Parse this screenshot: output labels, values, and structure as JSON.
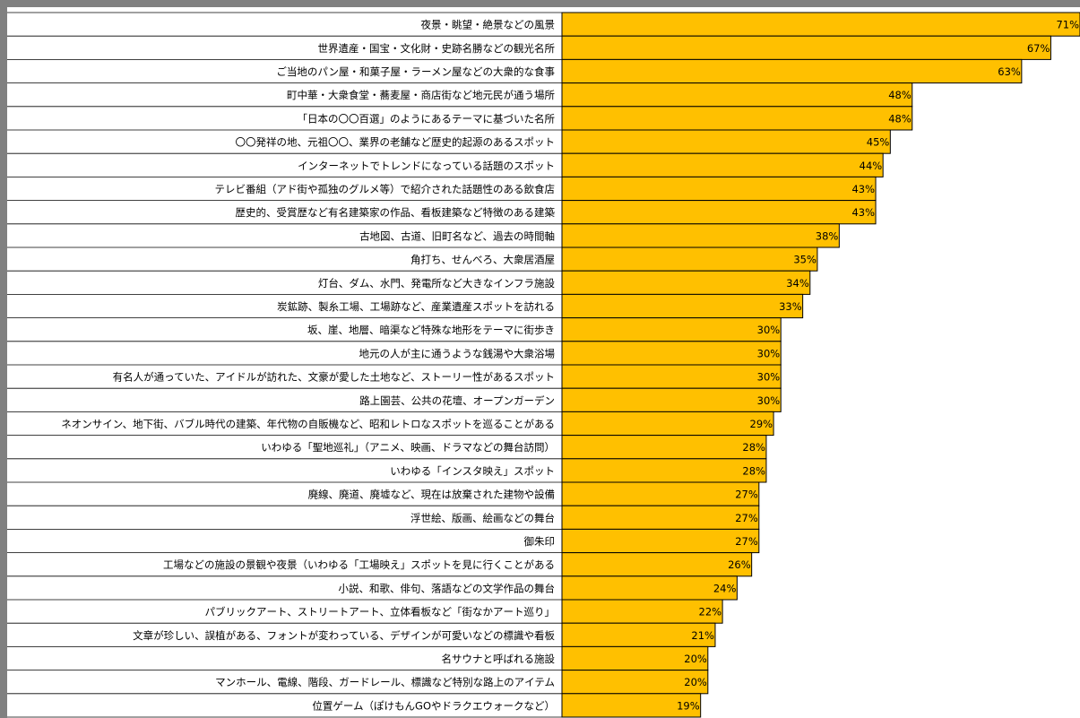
{
  "chart_data": {
    "type": "bar",
    "orientation": "horizontal",
    "color": "#ffc000",
    "categories": [
      "夜景・眺望・絶景などの風景",
      "世界遺産・国宝・文化財・史跡名勝などの観光名所",
      "ご当地のパン屋・和菓子屋・ラーメン屋などの大衆的な食事",
      "町中華・大衆食堂・蕎麦屋・商店街など地元民が通う場所",
      "「日本の〇〇百選」のようにあるテーマに基づいた名所",
      "〇〇発祥の地、元祖〇〇、業界の老舗など歴史的起源のあるスポット",
      "インターネットでトレンドになっている話題のスポット",
      "テレビ番組（アド街や孤独のグルメ等）で紹介された話題性のある飲食店",
      "歴史的、受賞歴など有名建築家の作品、看板建築など特徴のある建築",
      "古地図、古道、旧町名など、過去の時間軸",
      "角打ち、せんべろ、大衆居酒屋",
      "灯台、ダム、水門、発電所など大きなインフラ施設",
      "炭鉱跡、製糸工場、工場跡など、産業遺産スポットを訪れる",
      "坂、崖、地層、暗渠など特殊な地形をテーマに街歩き",
      "地元の人が主に通うような銭湯や大衆浴場",
      "有名人が通っていた、アイドルが訪れた、文豪が愛した土地など、ストーリー性があるスポット",
      "路上園芸、公共の花壇、オープンガーデン",
      "ネオンサイン、地下街、バブル時代の建築、年代物の自販機など、昭和レトロなスポットを巡ることがある",
      "いわゆる「聖地巡礼」（アニメ、映画、ドラマなどの舞台訪問）",
      "いわゆる「インスタ映え」スポット",
      "廃線、廃道、廃墟など、現在は放棄された建物や設備",
      "浮世絵、版画、絵画などの舞台",
      "御朱印",
      "工場などの施設の景観や夜景（いわゆる「工場映え」スポットを見に行くことがある",
      "小説、和歌、俳句、落語などの文学作品の舞台",
      "パブリックアート、ストリートアート、立体看板など「街なかアート巡り」",
      "文章が珍しい、誤植がある、フォントが変わっている、デザインが可愛いなどの標識や看板",
      "名サウナと呼ばれる施設",
      "マンホール、電線、階段、ガードレール、標識など特別な路上のアイテム",
      "位置ゲーム（ぽけもんGOやドラクエウォークなど）"
    ],
    "values": [
      71,
      67,
      63,
      48,
      48,
      45,
      44,
      43,
      43,
      38,
      35,
      34,
      33,
      30,
      30,
      30,
      30,
      29,
      28,
      28,
      27,
      27,
      27,
      26,
      24,
      22,
      21,
      20,
      20,
      19
    ],
    "value_labels": [
      "71%",
      "67%",
      "63%",
      "48%",
      "48%",
      "45%",
      "44%",
      "43%",
      "43%",
      "38%",
      "35%",
      "34%",
      "33%",
      "30%",
      "30%",
      "30%",
      "30%",
      "29%",
      "28%",
      "28%",
      "27%",
      "27%",
      "27%",
      "26%",
      "24%",
      "22%",
      "21%",
      "20%",
      "20%",
      "19%"
    ]
  }
}
